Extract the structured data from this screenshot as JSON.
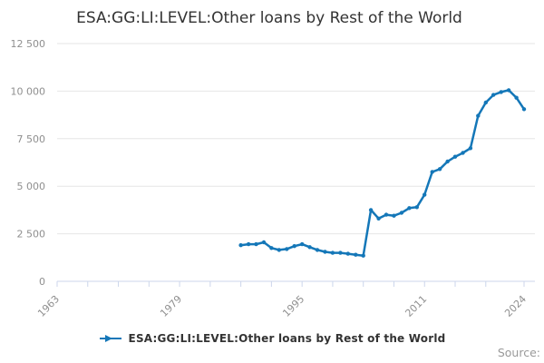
{
  "title": "ESA:GG:LI:LEVEL:Other loans by Rest of the World",
  "source_label": "Source:",
  "legend": {
    "label": "ESA:GG:LI:LEVEL:Other loans by Rest of the World",
    "marker_icon": "line-arrow-marker"
  },
  "colors": {
    "line": "#1477b8",
    "grid": "#e6e6e6",
    "axis": "#ccd6eb",
    "tick_label": "#8f8f8f",
    "title": "#333333",
    "legend_text": "#333333",
    "source": "#999999"
  },
  "chart_data": {
    "type": "line",
    "title": "ESA:GG:LI:LEVEL:Other loans by Rest of the World",
    "series_name": "ESA:GG:LI:LEVEL:Other loans by Rest of the World",
    "xlabel": "",
    "ylabel": "",
    "grid": true,
    "legend_position": "bottom-center",
    "x_axis": {
      "min": 1963,
      "max": 2024,
      "tick_interval_years": 4,
      "labeled_ticks": [
        1963,
        1979,
        1995,
        2011,
        2024
      ]
    },
    "y_axis": {
      "min": 0,
      "max": 12500,
      "tick_interval": 2500,
      "tick_labels": [
        "0",
        "2 500",
        "5 000",
        "7 500",
        "10 000",
        "12 500"
      ]
    },
    "x": [
      1987,
      1988,
      1989,
      1990,
      1991,
      1992,
      1993,
      1994,
      1995,
      1996,
      1997,
      1998,
      1999,
      2000,
      2001,
      2002,
      2003,
      2004,
      2005,
      2006,
      2007,
      2008,
      2009,
      2010,
      2011,
      2012,
      2013,
      2014,
      2015,
      2016,
      2017,
      2018,
      2019,
      2020,
      2021,
      2022,
      2023,
      2024
    ],
    "values": [
      1900,
      1950,
      1950,
      2050,
      1750,
      1650,
      1700,
      1850,
      1950,
      1800,
      1650,
      1550,
      1500,
      1500,
      1450,
      1400,
      1350,
      3750,
      3300,
      3500,
      3450,
      3600,
      3850,
      3900,
      4550,
      5750,
      5900,
      6300,
      6550,
      6750,
      7000,
      8700,
      9400,
      9800,
      9950,
      10050,
      9650,
      9050
    ]
  }
}
